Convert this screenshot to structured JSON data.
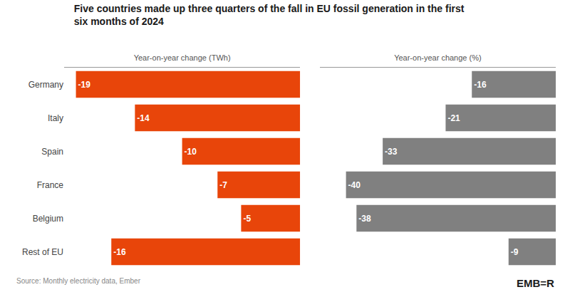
{
  "title": "Five countries made up three quarters of the fall in EU fossil generation in the first\nsix months of 2024",
  "annotations": [
    "Source: Monthly electricity data, Ember",
    "EMB=R"
  ],
  "chart_data": [
    {
      "type": "bar",
      "orientation": "horizontal",
      "xlabel": "Year-on-year change (TWh)",
      "categories": [
        "Germany",
        "Italy",
        "Spain",
        "France",
        "Belgium",
        "Rest of EU"
      ],
      "values": [
        -19,
        -14,
        -10,
        -7,
        -5,
        -16
      ],
      "color": "#E8450A",
      "xlim": [
        -20,
        0
      ],
      "grid": false,
      "data_labels": true,
      "tick_labels": "y"
    },
    {
      "type": "bar",
      "orientation": "horizontal",
      "xlabel": "Year-on-year change (%)",
      "categories": [
        "Germany",
        "Italy",
        "Spain",
        "France",
        "Belgium",
        "Rest of EU"
      ],
      "values": [
        -16,
        -21,
        -33,
        -40,
        -38,
        -9
      ],
      "color": "#808080",
      "xlim": [
        -45,
        0
      ],
      "grid": false,
      "data_labels": true,
      "tick_labels": false
    }
  ]
}
